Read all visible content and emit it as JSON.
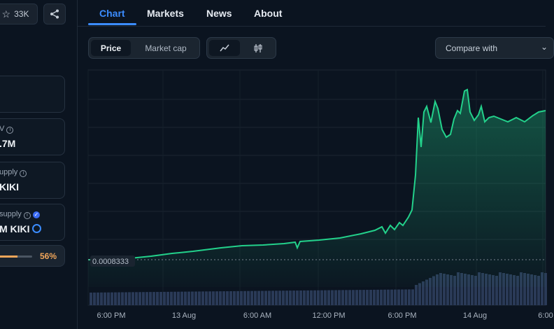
{
  "sidebar": {
    "watchlist_count": "33K",
    "cards": [
      {
        "label": "",
        "value": ""
      },
      {
        "label": "V",
        "value": ".7M"
      },
      {
        "label": "upply",
        "value": "KIKI"
      },
      {
        "label": "supply",
        "value": "M KIKI"
      },
      {
        "label": "",
        "value": "56%"
      }
    ],
    "progress": 0.56
  },
  "tabs": [
    "Chart",
    "Markets",
    "News",
    "About"
  ],
  "active_tab": "Chart",
  "toolbar": {
    "price_label": "Price",
    "marketcap_label": "Market cap",
    "compare_placeholder": "Compare with"
  },
  "chart_data": {
    "type": "line",
    "reference_label": "0.0008333",
    "x_ticks": [
      "6:00 PM",
      "13 Aug",
      "6:00 AM",
      "12:00 PM",
      "6:00 PM",
      "14 Aug",
      "6:00"
    ],
    "colors": {
      "line": "#23d18b",
      "volume": "#2a3a57"
    }
  }
}
